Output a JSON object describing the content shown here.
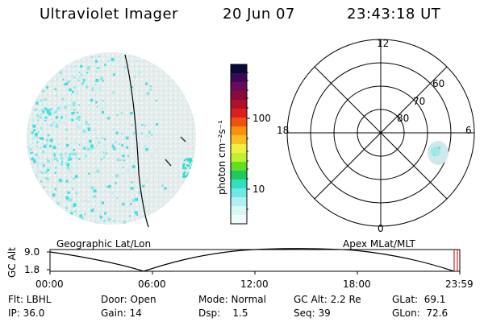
{
  "header": {
    "instrument": "Ultraviolet Imager",
    "date": "20 Jun 07",
    "time": "23:43:18 UT"
  },
  "colorbar": {
    "label": "photon cm⁻²s⁻¹",
    "ticks": [
      "100",
      "10"
    ],
    "colors": [
      "#0a0a3a",
      "#3a0a5a",
      "#6a0a5a",
      "#8a0a3a",
      "#b0102a",
      "#d82020",
      "#f05010",
      "#f89010",
      "#f8c020",
      "#f0f040",
      "#c0f030",
      "#60e020",
      "#20c860",
      "#30e0c0",
      "#70e8e8",
      "#b0f0f0",
      "#d8f8f8",
      "#f0fcfc"
    ]
  },
  "polar_grid": {
    "mlt_labels": [
      "12",
      "18",
      "6",
      "0"
    ],
    "mlat_labels": [
      "60",
      "70",
      "80"
    ]
  },
  "timeline": {
    "left_label": "Geographic Lat/Lon",
    "right_label": "Apex MLat/MLT",
    "y_axis_label": "GC Alt",
    "y_ticks": [
      "9.0",
      "1.8"
    ],
    "time_ticks": [
      "00:00",
      "06:00",
      "12:00",
      "18:00",
      "23:59"
    ]
  },
  "info": {
    "row1": {
      "flt": "Flt: LBHL",
      "door": "Door: Open",
      "mode": "Mode: Normal",
      "gcalt": "GC Alt: 2.2 Re",
      "glat": "GLat:  69.1"
    },
    "row2": {
      "ip": "IP: 36.0",
      "gain": "Gain: 14",
      "dsp": "Dsp:    1.5",
      "seq": "Seq: 39",
      "glon": "GLon:  72.6"
    }
  }
}
